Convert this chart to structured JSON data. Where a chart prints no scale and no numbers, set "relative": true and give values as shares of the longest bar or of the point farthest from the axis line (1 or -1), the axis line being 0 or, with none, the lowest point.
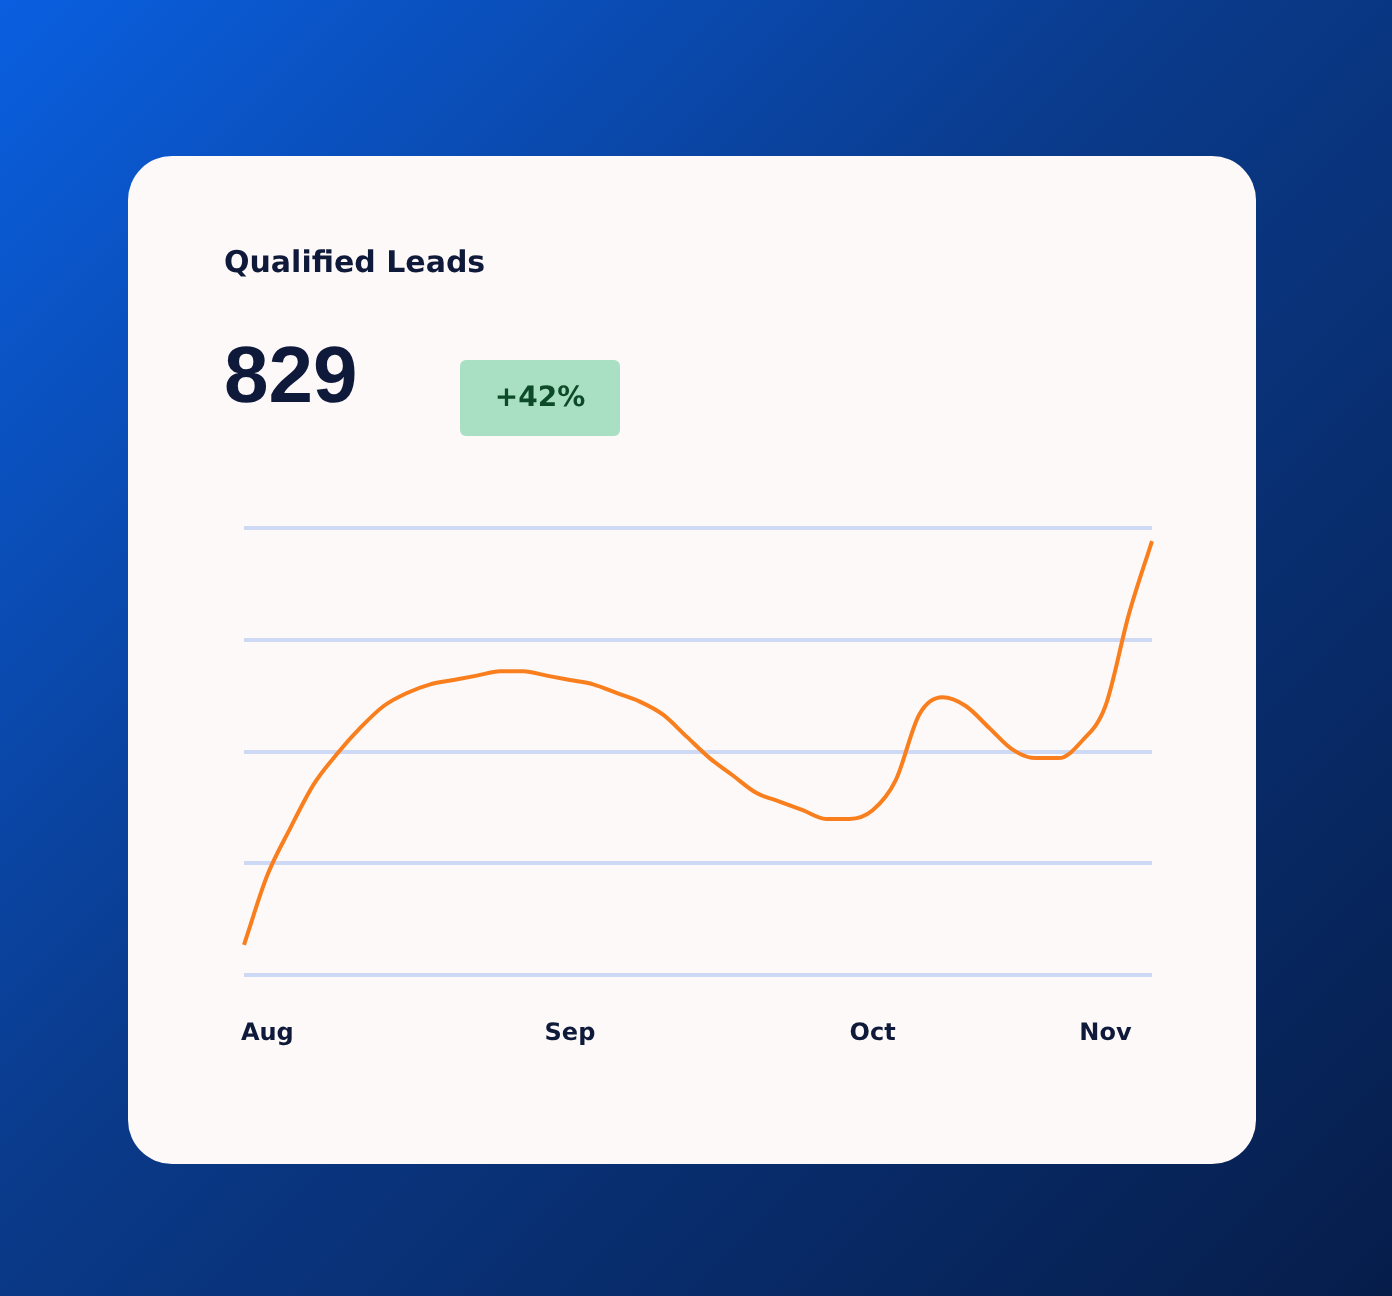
{
  "chart_data": {
    "type": "line",
    "title": "Qualified Leads",
    "annotations": [
      "829",
      "+42%"
    ],
    "categories": [
      null,
      "Aug",
      null,
      null,
      null,
      null,
      null,
      null,
      null,
      null,
      null,
      null,
      null,
      null,
      "Sep",
      null,
      null,
      null,
      null,
      null,
      null,
      null,
      null,
      null,
      null,
      null,
      null,
      "Oct",
      null,
      null,
      null,
      null,
      null,
      null,
      null,
      null,
      null,
      "Nov",
      null,
      null
    ],
    "relative": true,
    "grid": "y",
    "legend": false,
    "marker": "none",
    "line_style": "solid",
    "series": [
      {
        "color": "#f97f1e",
        "values": [
          0.07,
          0.23,
          0.34,
          0.44,
          0.51,
          0.57,
          0.62,
          0.65,
          0.67,
          0.68,
          0.69,
          0.7,
          0.7,
          0.69,
          0.68,
          0.67,
          0.65,
          0.63,
          0.6,
          0.55,
          0.5,
          0.46,
          0.42,
          0.4,
          0.38,
          0.36,
          0.36,
          0.38,
          0.45,
          0.6,
          0.64,
          0.62,
          0.57,
          0.52,
          0.5,
          0.5,
          0.54,
          0.62,
          0.83,
          1.0
        ]
      }
    ]
  }
}
